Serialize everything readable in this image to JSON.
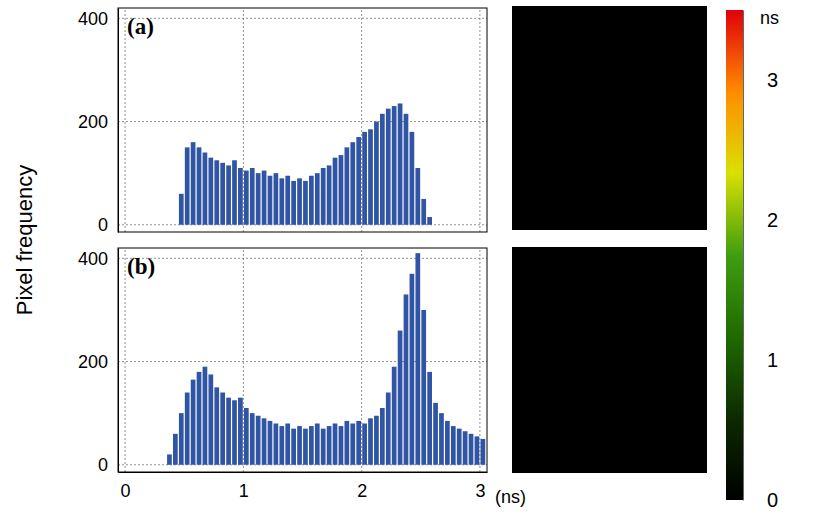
{
  "chart_data": [
    {
      "type": "histogram",
      "title": "(a)",
      "ylabel": "Pixel frequency",
      "color": "#2f55a4",
      "grid": true,
      "tick_labels": "y",
      "xlim": [
        -0.06,
        3.06
      ],
      "xticks": [
        0,
        1,
        2,
        3
      ],
      "ylim": [
        -14,
        420
      ],
      "yticks": [
        0,
        200,
        400
      ],
      "bins": [
        0.45,
        0.5,
        0.55,
        0.6,
        0.65,
        0.7,
        0.75,
        0.8,
        0.85,
        0.9,
        0.95,
        1.0,
        1.05,
        1.1,
        1.15,
        1.2,
        1.25,
        1.3,
        1.35,
        1.4,
        1.45,
        1.5,
        1.55,
        1.6,
        1.65,
        1.7,
        1.75,
        1.8,
        1.85,
        1.9,
        1.95,
        2.0,
        2.05,
        2.1,
        2.15,
        2.2,
        2.25,
        2.3,
        2.35,
        2.4,
        2.45,
        2.5,
        2.55,
        2.6
      ],
      "values": [
        60,
        150,
        160,
        150,
        140,
        130,
        125,
        120,
        115,
        125,
        110,
        105,
        110,
        100,
        105,
        95,
        100,
        90,
        95,
        85,
        90,
        85,
        95,
        100,
        110,
        115,
        130,
        135,
        150,
        160,
        170,
        180,
        185,
        200,
        215,
        225,
        230,
        235,
        215,
        180,
        110,
        50,
        15
      ]
    },
    {
      "type": "histogram",
      "title": "(b)",
      "xlabel": "(ns)",
      "color": "#2f55a4",
      "grid": true,
      "xlim": [
        -0.06,
        3.06
      ],
      "xticks": [
        0,
        1,
        2,
        3
      ],
      "ylim": [
        -14,
        420
      ],
      "yticks": [
        0,
        200,
        400
      ],
      "bins": [
        0.35,
        0.4,
        0.45,
        0.5,
        0.55,
        0.6,
        0.65,
        0.7,
        0.75,
        0.8,
        0.85,
        0.9,
        0.95,
        1.0,
        1.05,
        1.1,
        1.15,
        1.2,
        1.25,
        1.3,
        1.35,
        1.4,
        1.45,
        1.5,
        1.55,
        1.6,
        1.65,
        1.7,
        1.75,
        1.8,
        1.85,
        1.9,
        1.95,
        2.0,
        2.05,
        2.1,
        2.15,
        2.2,
        2.25,
        2.3,
        2.35,
        2.4,
        2.45,
        2.5,
        2.55,
        2.6,
        2.65,
        2.7,
        2.75,
        2.8,
        2.85,
        2.9,
        2.95,
        3.0,
        3.05
      ],
      "values": [
        20,
        60,
        100,
        140,
        165,
        180,
        190,
        175,
        150,
        140,
        130,
        125,
        130,
        110,
        100,
        95,
        90,
        85,
        80,
        75,
        80,
        70,
        75,
        70,
        75,
        80,
        70,
        75,
        80,
        75,
        85,
        80,
        85,
        80,
        90,
        95,
        110,
        140,
        190,
        260,
        330,
        370,
        410,
        300,
        180,
        120,
        100,
        85,
        75,
        70,
        65,
        60,
        55,
        50
      ]
    }
  ],
  "colorbar": {
    "label": "ns",
    "range": [
      0,
      3.5
    ],
    "ticks": [
      0,
      1,
      2,
      3
    ],
    "colors": [
      "#000000",
      "#0d2a00",
      "#1f6a00",
      "#3f9e10",
      "#d9e000",
      "#ff8c00",
      "#e0000a"
    ]
  }
}
